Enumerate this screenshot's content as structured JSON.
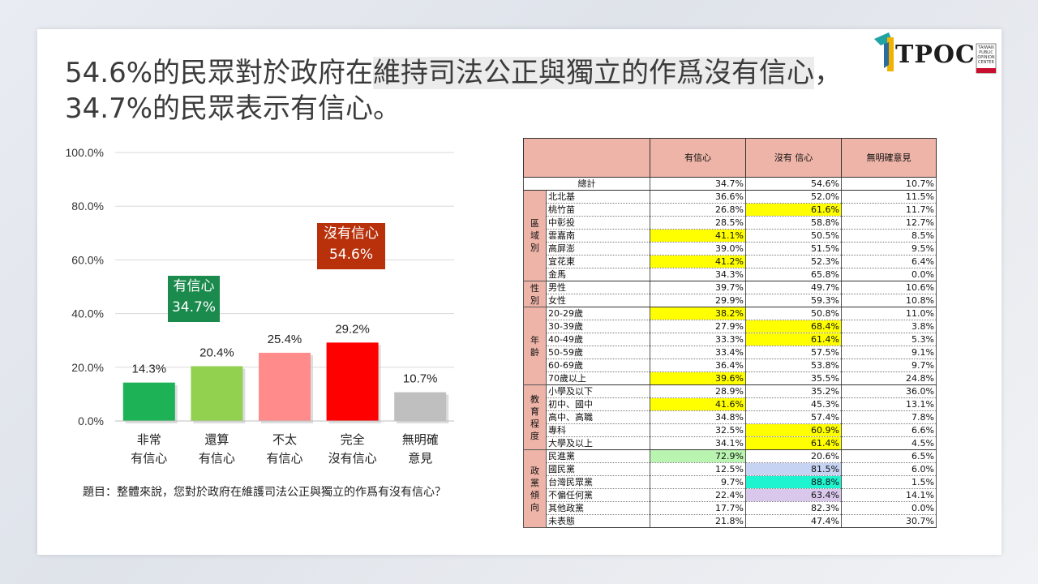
{
  "title": {
    "line1_a": "54.6%的民眾對於政府在",
    "line1_b": "維持司法公正與獨立的作爲沒有信心",
    "line1_c": "，",
    "line2": "34.7%的民眾表示有信心。"
  },
  "logo": {
    "text": "TPOC",
    "sub": "TAIWAN PUBLIC OPINION CENTER"
  },
  "callouts": {
    "yes": {
      "label": "有信心",
      "value": "34.7%"
    },
    "no": {
      "label": "沒有信心",
      "value": "54.6%"
    }
  },
  "question": "題目：整體來說，您對於政府在維護司法公正與獨立的作爲有沒有信心？",
  "chart_data": {
    "type": "bar",
    "categories": [
      [
        "非常",
        "有信心"
      ],
      [
        "還算",
        "有信心"
      ],
      [
        "不太",
        "有信心"
      ],
      [
        "完全",
        "沒有信心"
      ],
      [
        "無明確",
        "意見"
      ]
    ],
    "values": [
      14.3,
      20.4,
      25.4,
      29.2,
      10.7
    ],
    "value_labels": [
      "14.3%",
      "20.4%",
      "25.4%",
      "29.2%",
      "10.7%"
    ],
    "colors": [
      "#1db256",
      "#92d050",
      "#ff8b8b",
      "#ff0000",
      "#bfbfbf"
    ],
    "yticks": [
      "0.0%",
      "20.0%",
      "40.0%",
      "60.0%",
      "80.0%",
      "100.0%"
    ],
    "ylim": [
      0,
      100
    ],
    "grid": true
  },
  "table": {
    "headers": [
      "有信心",
      "沒有 信心",
      "無明確意見"
    ],
    "total": {
      "label": "總計",
      "values": [
        "34.7%",
        "54.6%",
        "10.7%"
      ]
    },
    "groups": [
      {
        "name": "區域別",
        "rows": [
          {
            "label": "北北基",
            "values": [
              "36.6%",
              "52.0%",
              "11.5%"
            ],
            "hl": [
              null,
              null,
              null
            ]
          },
          {
            "label": "桃竹苗",
            "values": [
              "26.8%",
              "61.6%",
              "11.7%"
            ],
            "hl": [
              null,
              "#ffff00",
              null
            ]
          },
          {
            "label": "中彰投",
            "values": [
              "28.5%",
              "58.8%",
              "12.7%"
            ],
            "hl": [
              null,
              null,
              null
            ]
          },
          {
            "label": "雲嘉南",
            "values": [
              "41.1%",
              "50.5%",
              "8.5%"
            ],
            "hl": [
              "#ffff00",
              null,
              null
            ]
          },
          {
            "label": "高屏澎",
            "values": [
              "39.0%",
              "51.5%",
              "9.5%"
            ],
            "hl": [
              null,
              null,
              null
            ]
          },
          {
            "label": "宜花東",
            "values": [
              "41.2%",
              "52.3%",
              "6.4%"
            ],
            "hl": [
              "#ffff00",
              null,
              null
            ]
          },
          {
            "label": "金馬",
            "values": [
              "34.3%",
              "65.8%",
              "0.0%"
            ],
            "hl": [
              null,
              null,
              null
            ]
          }
        ]
      },
      {
        "name": "性別",
        "rows": [
          {
            "label": "男性",
            "values": [
              "39.7%",
              "49.7%",
              "10.6%"
            ],
            "hl": [
              null,
              null,
              null
            ]
          },
          {
            "label": "女性",
            "values": [
              "29.9%",
              "59.3%",
              "10.8%"
            ],
            "hl": [
              null,
              null,
              null
            ]
          }
        ]
      },
      {
        "name": "年齡",
        "rows": [
          {
            "label": "20-29歲",
            "values": [
              "38.2%",
              "50.8%",
              "11.0%"
            ],
            "hl": [
              "#ffff00",
              null,
              null
            ]
          },
          {
            "label": "30-39歲",
            "values": [
              "27.9%",
              "68.4%",
              "3.8%"
            ],
            "hl": [
              null,
              "#ffff00",
              null
            ]
          },
          {
            "label": "40-49歲",
            "values": [
              "33.3%",
              "61.4%",
              "5.3%"
            ],
            "hl": [
              null,
              "#ffff00",
              null
            ]
          },
          {
            "label": "50-59歲",
            "values": [
              "33.4%",
              "57.5%",
              "9.1%"
            ],
            "hl": [
              null,
              null,
              null
            ]
          },
          {
            "label": "60-69歲",
            "values": [
              "36.4%",
              "53.8%",
              "9.7%"
            ],
            "hl": [
              null,
              null,
              null
            ]
          },
          {
            "label": "70歲以上",
            "values": [
              "39.6%",
              "35.5%",
              "24.8%"
            ],
            "hl": [
              "#ffff00",
              null,
              null
            ]
          }
        ]
      },
      {
        "name": "教育程度",
        "rows": [
          {
            "label": "小學及以下",
            "values": [
              "28.9%",
              "35.2%",
              "36.0%"
            ],
            "hl": [
              null,
              null,
              null
            ]
          },
          {
            "label": "初中、國中",
            "values": [
              "41.6%",
              "45.3%",
              "13.1%"
            ],
            "hl": [
              "#ffff00",
              null,
              null
            ]
          },
          {
            "label": "高中、高職",
            "values": [
              "34.8%",
              "57.4%",
              "7.8%"
            ],
            "hl": [
              null,
              null,
              null
            ]
          },
          {
            "label": "專科",
            "values": [
              "32.5%",
              "60.9%",
              "6.6%"
            ],
            "hl": [
              null,
              "#ffff00",
              null
            ]
          },
          {
            "label": "大學及以上",
            "values": [
              "34.1%",
              "61.4%",
              "4.5%"
            ],
            "hl": [
              null,
              "#ffff00",
              null
            ]
          }
        ]
      },
      {
        "name": "政黨傾向",
        "rows": [
          {
            "label": "民進黨",
            "values": [
              "72.9%",
              "20.6%",
              "6.5%"
            ],
            "hl": [
              "#b9f5b0",
              null,
              null
            ]
          },
          {
            "label": "國民黨",
            "values": [
              "12.5%",
              "81.5%",
              "6.0%"
            ],
            "hl": [
              null,
              "#c7d3f3",
              null
            ]
          },
          {
            "label": "台灣民眾黨",
            "values": [
              "9.7%",
              "88.8%",
              "1.5%"
            ],
            "hl": [
              null,
              "#1ef4cf",
              null
            ]
          },
          {
            "label": "不偏任何黨",
            "values": [
              "22.4%",
              "63.4%",
              "14.1%"
            ],
            "hl": [
              null,
              "#d9c8ec",
              null
            ]
          },
          {
            "label": "其他政黨",
            "values": [
              "17.7%",
              "82.3%",
              "0.0%"
            ],
            "hl": [
              null,
              null,
              null
            ]
          },
          {
            "label": "未表態",
            "values": [
              "21.8%",
              "47.4%",
              "30.7%"
            ],
            "hl": [
              null,
              null,
              null
            ]
          }
        ]
      }
    ]
  }
}
